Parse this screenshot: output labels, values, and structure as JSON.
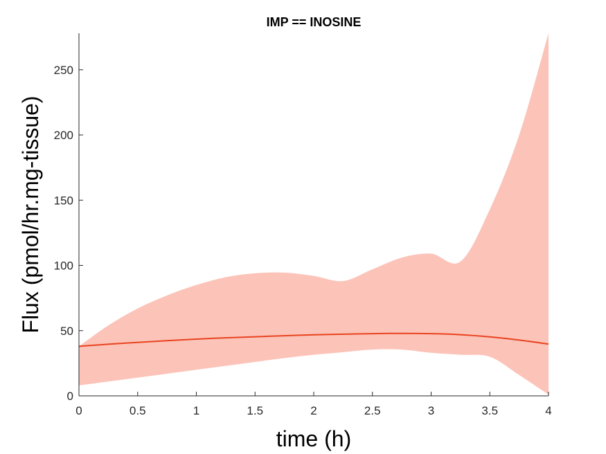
{
  "chart_data": {
    "type": "line",
    "title": "IMP == INOSINE",
    "xlabel": "time (h)",
    "ylabel": "Flux (pmol/hr.mg-tissue)",
    "xlim": [
      0,
      4
    ],
    "ylim": [
      0,
      278
    ],
    "x_ticks": [
      0,
      0.5,
      1,
      1.5,
      2,
      2.5,
      3,
      3.5,
      4
    ],
    "x_tick_labels": [
      "0",
      "0.5",
      "1",
      "1.5",
      "2",
      "2.5",
      "3",
      "3.5",
      "4"
    ],
    "y_ticks": [
      0,
      50,
      100,
      150,
      200,
      250
    ],
    "y_tick_labels": [
      "0",
      "50",
      "100",
      "150",
      "200",
      "250"
    ],
    "grid": false,
    "colors": {
      "line": "#e8431f",
      "band": "#fcc3b8",
      "axis": "#262626"
    },
    "series": [
      {
        "x": [
          0,
          0.25,
          0.5,
          0.75,
          1,
          1.25,
          1.5,
          1.75,
          2,
          2.25,
          2.5,
          2.75,
          3,
          3.25,
          3.5,
          3.75,
          4
        ],
        "values": [
          38,
          39.6,
          41,
          42.3,
          43.5,
          44.5,
          45.3,
          46.1,
          46.8,
          47.3,
          47.7,
          47.9,
          47.7,
          46.9,
          45.2,
          42.8,
          39.7
        ],
        "lower": [
          8,
          11,
          14,
          17,
          20,
          23,
          26,
          29,
          31.5,
          33.5,
          35.5,
          35.5,
          33,
          31.5,
          30,
          16,
          1
        ],
        "upper": [
          38,
          54,
          67,
          77,
          85,
          91,
          94,
          94.5,
          92,
          88,
          97,
          106,
          109,
          103,
          143,
          200,
          278
        ]
      }
    ]
  }
}
